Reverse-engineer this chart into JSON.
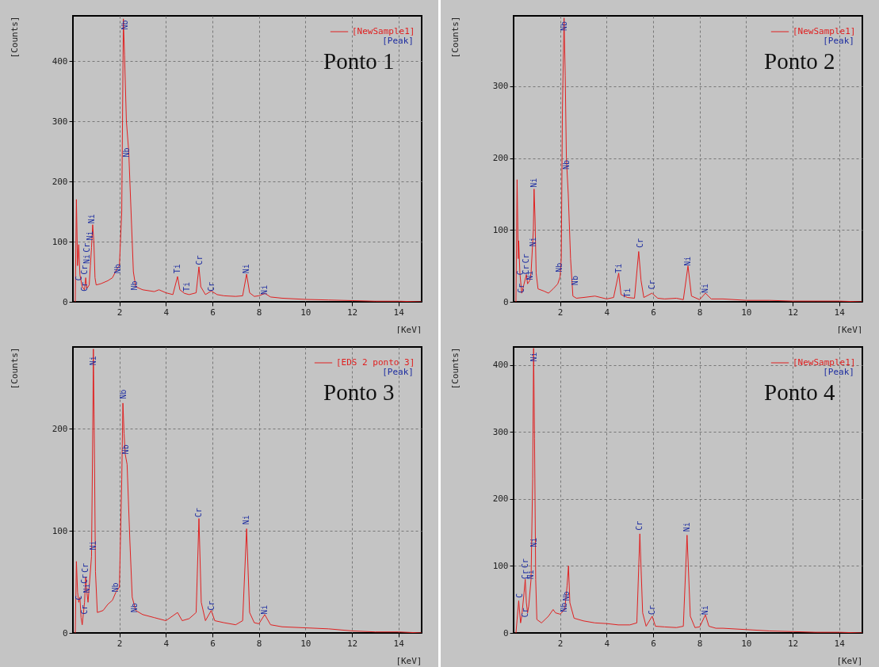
{
  "chart_data": [
    {
      "type": "line",
      "title": "Ponto 1",
      "xlabel": "[KeV]",
      "ylabel": "[Counts]",
      "xlim": [
        0,
        15
      ],
      "ylim": [
        0,
        475
      ],
      "xticks": [
        2,
        4,
        6,
        8,
        10,
        12,
        14
      ],
      "yticks": [
        0,
        100,
        200,
        300,
        400
      ],
      "grid": true,
      "legend": "top right",
      "series": [
        {
          "name": "[NewSample1]",
          "color": "#e02020",
          "x": [
            0.1,
            0.15,
            0.2,
            0.25,
            0.3,
            0.4,
            0.5,
            0.55,
            0.6,
            0.7,
            0.75,
            0.8,
            0.85,
            0.9,
            0.95,
            1.0,
            1.2,
            1.5,
            1.7,
            1.9,
            2.0,
            2.1,
            2.17,
            2.22,
            2.3,
            2.4,
            2.5,
            2.6,
            2.7,
            3.0,
            3.5,
            3.7,
            4.0,
            4.3,
            4.5,
            4.6,
            4.8,
            5.0,
            5.3,
            5.42,
            5.5,
            5.7,
            5.95,
            6.2,
            6.5,
            7.0,
            7.3,
            7.47,
            7.6,
            7.8,
            8.0,
            8.26,
            8.5,
            9,
            10,
            11,
            12,
            13,
            14,
            15
          ],
          "values": [
            0,
            170,
            60,
            95,
            45,
            25,
            20,
            40,
            22,
            28,
            60,
            90,
            128,
            100,
            40,
            28,
            30,
            35,
            40,
            55,
            60,
            150,
            470,
            410,
            300,
            250,
            150,
            50,
            25,
            20,
            17,
            20,
            15,
            12,
            42,
            20,
            14,
            12,
            15,
            58,
            25,
            12,
            18,
            12,
            10,
            9,
            10,
            46,
            15,
            9,
            10,
            14,
            8,
            6,
            4,
            3,
            2,
            1,
            1,
            0
          ]
        }
      ],
      "annotations": [
        "[Peak]",
        {
          "text": "C",
          "x": 0.28,
          "y": 35
        },
        {
          "text": "Cr",
          "x": 0.52,
          "y": 17
        },
        {
          "text": "Cr",
          "x": 0.52,
          "y": 45
        },
        {
          "text": "Ni",
          "x": 0.63,
          "y": 63
        },
        {
          "text": "Cr",
          "x": 0.6,
          "y": 82
        },
        {
          "text": "Ni",
          "x": 0.75,
          "y": 102
        },
        {
          "text": "Ni",
          "x": 0.82,
          "y": 130
        },
        {
          "text": "Nb",
          "x": 1.94,
          "y": 47
        },
        {
          "text": "Nb",
          "x": 2.24,
          "y": 452
        },
        {
          "text": "Nb",
          "x": 2.33,
          "y": 240
        },
        {
          "text": "Nb",
          "x": 2.67,
          "y": 19
        },
        {
          "text": "Ti",
          "x": 4.49,
          "y": 47
        },
        {
          "text": "Ti",
          "x": 4.9,
          "y": 17
        },
        {
          "text": "Cr",
          "x": 5.45,
          "y": 61
        },
        {
          "text": "Cr",
          "x": 5.95,
          "y": 17
        },
        {
          "text": "Ni",
          "x": 7.47,
          "y": 47
        },
        {
          "text": "Ni",
          "x": 8.25,
          "y": 12
        }
      ]
    },
    {
      "type": "line",
      "title": "Ponto 2",
      "xlabel": "[KeV]",
      "ylabel": "[Counts]",
      "xlim": [
        0,
        15
      ],
      "ylim": [
        0,
        398
      ],
      "xticks": [
        2,
        4,
        6,
        8,
        10,
        12,
        14
      ],
      "yticks": [
        0,
        100,
        200,
        300
      ],
      "grid": true,
      "legend": "top right",
      "series": [
        {
          "name": "[NewSample1]",
          "color": "#e02020",
          "x": [
            0.1,
            0.15,
            0.2,
            0.22,
            0.27,
            0.35,
            0.45,
            0.55,
            0.6,
            0.7,
            0.75,
            0.85,
            0.88,
            0.92,
            0.97,
            1.05,
            1.3,
            1.5,
            1.7,
            1.9,
            2.0,
            2.05,
            2.1,
            2.17,
            2.22,
            2.27,
            2.35,
            2.45,
            2.55,
            2.7,
            3.0,
            3.5,
            4.0,
            4.3,
            4.52,
            4.62,
            4.9,
            5.2,
            5.38,
            5.48,
            5.6,
            5.95,
            6.2,
            6.5,
            7.0,
            7.3,
            7.5,
            7.65,
            8.0,
            8.25,
            8.5,
            9,
            10,
            11,
            12,
            13,
            14,
            15
          ],
          "values": [
            0,
            170,
            60,
            85,
            40,
            12,
            25,
            38,
            25,
            30,
            40,
            100,
            157,
            118,
            40,
            18,
            15,
            12,
            18,
            25,
            35,
            60,
            270,
            395,
            315,
            200,
            150,
            60,
            8,
            5,
            6,
            8,
            4,
            6,
            40,
            10,
            6,
            5,
            70,
            30,
            6,
            12,
            5,
            4,
            5,
            3,
            50,
            8,
            3,
            12,
            4,
            4,
            2,
            2,
            1,
            1,
            1,
            0
          ]
        }
      ],
      "annotations": [
        "[Peak]",
        {
          "text": "C",
          "x": 0.3,
          "y": 37
        },
        {
          "text": "Cr",
          "x": 0.35,
          "y": 12
        },
        {
          "text": "Cr",
          "x": 0.55,
          "y": 38
        },
        {
          "text": "Cr",
          "x": 0.55,
          "y": 38
        },
        {
          "text": "Ni",
          "x": 0.7,
          "y": 30
        },
        {
          "text": "Ni",
          "x": 0.85,
          "y": 77
        },
        {
          "text": "Ni",
          "x": 0.88,
          "y": 159
        },
        {
          "text": "Nb",
          "x": 1.99,
          "y": 41
        },
        {
          "text": "Nb",
          "x": 2.17,
          "y": 377
        },
        {
          "text": "Nb",
          "x": 2.3,
          "y": 184
        },
        {
          "text": "Nb",
          "x": 2.65,
          "y": 23
        },
        {
          "text": "Ti",
          "x": 4.52,
          "y": 40
        },
        {
          "text": "Ti",
          "x": 4.9,
          "y": 6
        },
        {
          "text": "Cr",
          "x": 5.45,
          "y": 75
        },
        {
          "text": "Cr",
          "x": 5.97,
          "y": 17
        },
        {
          "text": "Ni",
          "x": 7.5,
          "y": 50
        },
        {
          "text": "Ni",
          "x": 8.26,
          "y": 12
        }
      ]
    },
    {
      "type": "line",
      "title": "Ponto 3",
      "xlabel": "[KeV]",
      "ylabel": "[Counts]",
      "xlim": [
        0,
        15
      ],
      "ylim": [
        0,
        280
      ],
      "xticks": [
        2,
        4,
        6,
        8,
        10,
        12,
        14
      ],
      "yticks": [
        0,
        100,
        200
      ],
      "grid": true,
      "legend": "top right",
      "series": [
        {
          "name": "[EDS 2 ponto 3]",
          "color": "#e02020",
          "x": [
            0.1,
            0.15,
            0.2,
            0.25,
            0.3,
            0.35,
            0.4,
            0.5,
            0.55,
            0.6,
            0.65,
            0.7,
            0.8,
            0.85,
            0.88,
            0.92,
            0.97,
            1.05,
            1.3,
            1.5,
            1.7,
            1.85,
            2.0,
            2.1,
            2.15,
            2.2,
            2.25,
            2.33,
            2.45,
            2.55,
            2.7,
            3.0,
            3.5,
            4.0,
            4.5,
            4.7,
            5.0,
            5.3,
            5.42,
            5.52,
            5.7,
            5.95,
            6.1,
            6.5,
            7.0,
            7.3,
            7.47,
            7.6,
            7.8,
            8.0,
            8.25,
            8.5,
            9,
            10,
            11,
            12,
            13,
            14,
            15
          ],
          "values": [
            0,
            70,
            40,
            30,
            35,
            15,
            8,
            30,
            55,
            40,
            30,
            45,
            75,
            190,
            278,
            190,
            60,
            20,
            22,
            28,
            32,
            40,
            45,
            150,
            225,
            195,
            175,
            165,
            90,
            35,
            22,
            18,
            15,
            12,
            20,
            12,
            14,
            20,
            112,
            30,
            12,
            22,
            12,
            10,
            8,
            12,
            102,
            20,
            10,
            9,
            18,
            8,
            6,
            5,
            4,
            2,
            1,
            1,
            0
          ]
        }
      ],
      "annotations": [
        "[Peak]",
        {
          "text": "C",
          "x": 0.27,
          "y": 32
        },
        {
          "text": "Cr",
          "x": 0.51,
          "y": 18
        },
        {
          "text": "Cr",
          "x": 0.5,
          "y": 48
        },
        {
          "text": "Cr",
          "x": 0.55,
          "y": 59
        },
        {
          "text": "Ni",
          "x": 0.63,
          "y": 39
        },
        {
          "text": "Ni",
          "x": 0.87,
          "y": 81
        },
        {
          "text": "Ni",
          "x": 0.88,
          "y": 262
        },
        {
          "text": "Nb",
          "x": 1.85,
          "y": 40
        },
        {
          "text": "Nb",
          "x": 2.18,
          "y": 229
        },
        {
          "text": "Nb",
          "x": 2.3,
          "y": 175
        },
        {
          "text": "Nb",
          "x": 2.65,
          "y": 20
        },
        {
          "text": "Cr",
          "x": 5.42,
          "y": 113
        },
        {
          "text": "Cr",
          "x": 5.95,
          "y": 22
        },
        {
          "text": "Ni",
          "x": 7.48,
          "y": 106
        },
        {
          "text": "Ni",
          "x": 8.25,
          "y": 18
        }
      ]
    },
    {
      "type": "line",
      "title": "Ponto 4",
      "xlabel": "[KeV]",
      "ylabel": "[Counts]",
      "xlim": [
        0,
        15
      ],
      "ylim": [
        0,
        427
      ],
      "xticks": [
        2,
        4,
        6,
        8,
        10,
        12,
        14
      ],
      "yticks": [
        0,
        100,
        200,
        300,
        400
      ],
      "grid": true,
      "legend": "top right",
      "series": [
        {
          "name": "[NewSample1]",
          "color": "#e02020",
          "x": [
            0.1,
            0.15,
            0.22,
            0.3,
            0.35,
            0.45,
            0.5,
            0.55,
            0.6,
            0.65,
            0.75,
            0.82,
            0.86,
            0.9,
            0.95,
            1.0,
            1.2,
            1.5,
            1.7,
            1.8,
            2.0,
            2.2,
            2.3,
            2.36,
            2.42,
            2.6,
            3.0,
            3.5,
            4.0,
            4.5,
            5.0,
            5.3,
            5.43,
            5.55,
            5.7,
            5.96,
            6.1,
            6.5,
            7.0,
            7.3,
            7.46,
            7.6,
            7.8,
            8.0,
            8.25,
            8.4,
            8.7,
            9,
            10,
            11,
            12,
            13,
            14,
            15
          ],
          "values": [
            0,
            20,
            48,
            15,
            25,
            60,
            80,
            45,
            30,
            40,
            80,
            230,
            425,
            290,
            80,
            20,
            15,
            25,
            35,
            30,
            28,
            35,
            70,
            100,
            45,
            22,
            18,
            15,
            14,
            12,
            12,
            15,
            148,
            30,
            10,
            25,
            10,
            9,
            8,
            10,
            146,
            25,
            8,
            9,
            27,
            10,
            7,
            7,
            5,
            3,
            2,
            1,
            1,
            0
          ]
        }
      ],
      "annotations": [
        "[Peak]",
        {
          "text": "C",
          "x": 0.27,
          "y": 52
        },
        {
          "text": "Cr",
          "x": 0.51,
          "y": 23
        },
        {
          "text": "Cr",
          "x": 0.5,
          "y": 80
        },
        {
          "text": "Cr",
          "x": 0.5,
          "y": 80
        },
        {
          "text": "Ni",
          "x": 0.75,
          "y": 80
        },
        {
          "text": "Ni",
          "x": 0.87,
          "y": 128
        },
        {
          "text": "Ni",
          "x": 0.87,
          "y": 405
        },
        {
          "text": "Nb",
          "x": 2.18,
          "y": 31
        },
        {
          "text": "Nb",
          "x": 2.28,
          "y": 48
        },
        {
          "text": "Cr",
          "x": 5.43,
          "y": 153
        },
        {
          "text": "Cr",
          "x": 5.96,
          "y": 27
        },
        {
          "text": "Ni",
          "x": 7.46,
          "y": 151
        },
        {
          "text": "Ni",
          "x": 8.25,
          "y": 27
        }
      ]
    }
  ]
}
